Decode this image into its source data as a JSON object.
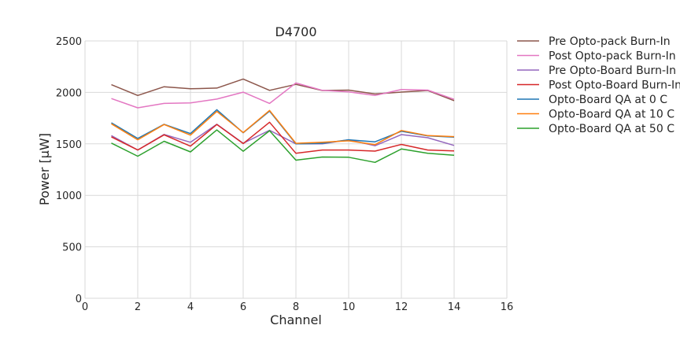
{
  "chart_data": {
    "type": "line",
    "title": "D4700",
    "xlabel": "Channel",
    "ylabel": "Power [μW]",
    "xlim": [
      0,
      16
    ],
    "ylim": [
      0,
      2500
    ],
    "xticks": [
      0,
      2,
      4,
      6,
      8,
      10,
      12,
      14,
      16
    ],
    "yticks": [
      0,
      500,
      1000,
      1500,
      2000,
      2500
    ],
    "grid": true,
    "legend_position": "outside right",
    "x": [
      1,
      2,
      3,
      4,
      5,
      6,
      7,
      8,
      9,
      10,
      11,
      12,
      13,
      14
    ],
    "series": [
      {
        "name": "Pre Opto-pack Burn-In",
        "color": "#8c564b",
        "values": [
          2075,
          1970,
          2055,
          2035,
          2042,
          2130,
          2020,
          2078,
          2018,
          2022,
          1985,
          2003,
          2018,
          1920
        ]
      },
      {
        "name": "Post Opto-pack Burn-In",
        "color": "#e377c2",
        "values": [
          1940,
          1850,
          1893,
          1898,
          1935,
          2002,
          1893,
          2092,
          2020,
          2005,
          1970,
          2028,
          2022,
          1933
        ]
      },
      {
        "name": "Pre Opto-Board Burn-In",
        "color": "#9467bd",
        "values": [
          1580,
          1440,
          1592,
          1515,
          1690,
          1505,
          1632,
          1500,
          1500,
          1540,
          1482,
          1590,
          1560,
          1485
        ]
      },
      {
        "name": "Post Opto-Board Burn-In",
        "color": "#d62728",
        "values": [
          1568,
          1440,
          1588,
          1478,
          1688,
          1503,
          1710,
          1408,
          1440,
          1440,
          1430,
          1495,
          1440,
          1432
        ]
      },
      {
        "name": "Opto-Board QA at 0 C",
        "color": "#1f77b4",
        "values": [
          1705,
          1553,
          1690,
          1600,
          1832,
          1608,
          1818,
          1500,
          1505,
          1540,
          1520,
          1622,
          1578,
          1565
        ]
      },
      {
        "name": "Opto-Board QA at 10 C",
        "color": "#ff7f0e",
        "values": [
          1695,
          1540,
          1688,
          1585,
          1815,
          1610,
          1825,
          1505,
          1515,
          1530,
          1492,
          1630,
          1580,
          1570
        ]
      },
      {
        "name": "Opto-Board QA at 50 C",
        "color": "#2ca02c",
        "values": [
          1508,
          1380,
          1525,
          1422,
          1635,
          1428,
          1628,
          1342,
          1372,
          1370,
          1320,
          1450,
          1408,
          1390
        ]
      }
    ]
  }
}
